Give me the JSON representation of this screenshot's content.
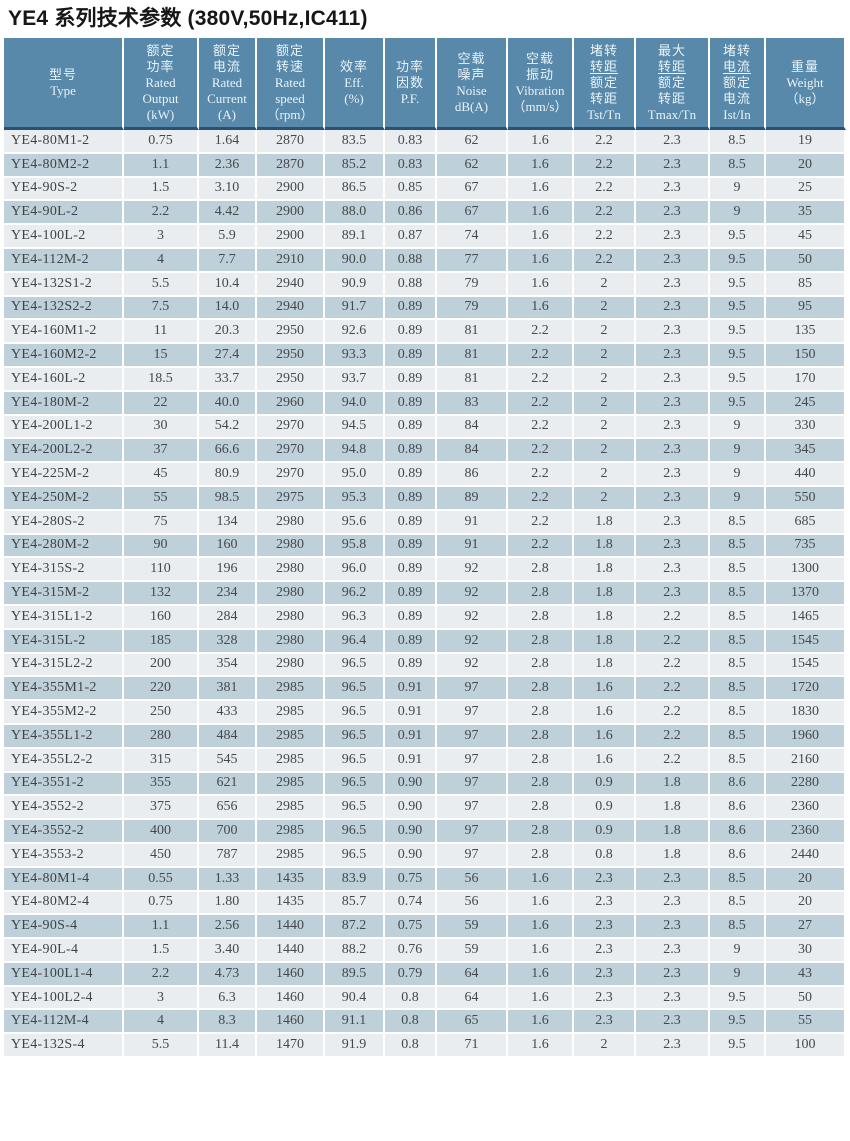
{
  "title": "YE4 系列技术参数 (380V,50Hz,IC411)",
  "colors": {
    "header_bg": "#5889ab",
    "header_text": "#e9f3f7",
    "header_bottom_edge": "#2c5170",
    "row_light": "#e9edef",
    "row_dark": "#bed0d9",
    "cell_text": "#46494b",
    "grid_line": "#ffffff"
  },
  "table": {
    "columns": [
      {
        "id": "type",
        "zh": [
          "型号"
        ],
        "en": [
          "Type"
        ]
      },
      {
        "id": "rated-output",
        "zh": [
          "额定",
          "功率"
        ],
        "en": [
          "Rated",
          "Output",
          "(kW)"
        ]
      },
      {
        "id": "rated-current",
        "zh": [
          "额定",
          "电流"
        ],
        "en": [
          "Rated",
          "Current",
          "(A)"
        ]
      },
      {
        "id": "rated-speed",
        "zh": [
          "额定",
          "转速"
        ],
        "en": [
          "Rated",
          "speed",
          "（rpm）"
        ]
      },
      {
        "id": "efficiency",
        "zh": [
          "效率"
        ],
        "en": [
          "Eff.",
          "(%)"
        ]
      },
      {
        "id": "power-factor",
        "zh": [
          "功率",
          "因数"
        ],
        "en": [
          "P.F."
        ]
      },
      {
        "id": "noise",
        "zh": [
          "空载",
          "噪声"
        ],
        "en": [
          "Noise",
          "dB(A)"
        ]
      },
      {
        "id": "vibration",
        "zh": [
          "空载",
          "振动"
        ],
        "en": [
          "Vibration",
          "（mm/s）"
        ]
      },
      {
        "id": "tst-tn",
        "zh": [
          "堵转",
          "转距",
          "额定",
          "转距"
        ],
        "underline_zh": 1,
        "en": [
          "Tst/Tn"
        ]
      },
      {
        "id": "tmax-tn",
        "zh": [
          "最大",
          "转距",
          "额定",
          "转距"
        ],
        "underline_zh": 1,
        "en": [
          "Tmax/Tn"
        ]
      },
      {
        "id": "ist-in",
        "zh": [
          "堵转",
          "电流",
          "额定",
          "电流"
        ],
        "underline_zh": 1,
        "en": [
          "Ist/In"
        ]
      },
      {
        "id": "weight",
        "zh": [
          "重量"
        ],
        "en": [
          "Weight",
          "（kg）"
        ]
      }
    ],
    "rows": [
      [
        "YE4-80M1-2",
        "0.75",
        "1.64",
        "2870",
        "83.5",
        "0.83",
        "62",
        "1.6",
        "2.2",
        "2.3",
        "8.5",
        "19"
      ],
      [
        "YE4-80M2-2",
        "1.1",
        "2.36",
        "2870",
        "85.2",
        "0.83",
        "62",
        "1.6",
        "2.2",
        "2.3",
        "8.5",
        "20"
      ],
      [
        "YE4-90S-2",
        "1.5",
        "3.10",
        "2900",
        "86.5",
        "0.85",
        "67",
        "1.6",
        "2.2",
        "2.3",
        "9",
        "25"
      ],
      [
        "YE4-90L-2",
        "2.2",
        "4.42",
        "2900",
        "88.0",
        "0.86",
        "67",
        "1.6",
        "2.2",
        "2.3",
        "9",
        "35"
      ],
      [
        "YE4-100L-2",
        "3",
        "5.9",
        "2900",
        "89.1",
        "0.87",
        "74",
        "1.6",
        "2.2",
        "2.3",
        "9.5",
        "45"
      ],
      [
        "YE4-112M-2",
        "4",
        "7.7",
        "2910",
        "90.0",
        "0.88",
        "77",
        "1.6",
        "2.2",
        "2.3",
        "9.5",
        "50"
      ],
      [
        "YE4-132S1-2",
        "5.5",
        "10.4",
        "2940",
        "90.9",
        "0.88",
        "79",
        "1.6",
        "2",
        "2.3",
        "9.5",
        "85"
      ],
      [
        "YE4-132S2-2",
        "7.5",
        "14.0",
        "2940",
        "91.7",
        "0.89",
        "79",
        "1.6",
        "2",
        "2.3",
        "9.5",
        "95"
      ],
      [
        "YE4-160M1-2",
        "11",
        "20.3",
        "2950",
        "92.6",
        "0.89",
        "81",
        "2.2",
        "2",
        "2.3",
        "9.5",
        "135"
      ],
      [
        "YE4-160M2-2",
        "15",
        "27.4",
        "2950",
        "93.3",
        "0.89",
        "81",
        "2.2",
        "2",
        "2.3",
        "9.5",
        "150"
      ],
      [
        "YE4-160L-2",
        "18.5",
        "33.7",
        "2950",
        "93.7",
        "0.89",
        "81",
        "2.2",
        "2",
        "2.3",
        "9.5",
        "170"
      ],
      [
        "YE4-180M-2",
        "22",
        "40.0",
        "2960",
        "94.0",
        "0.89",
        "83",
        "2.2",
        "2",
        "2.3",
        "9.5",
        "245"
      ],
      [
        "YE4-200L1-2",
        "30",
        "54.2",
        "2970",
        "94.5",
        "0.89",
        "84",
        "2.2",
        "2",
        "2.3",
        "9",
        "330"
      ],
      [
        "YE4-200L2-2",
        "37",
        "66.6",
        "2970",
        "94.8",
        "0.89",
        "84",
        "2.2",
        "2",
        "2.3",
        "9",
        "345"
      ],
      [
        "YE4-225M-2",
        "45",
        "80.9",
        "2970",
        "95.0",
        "0.89",
        "86",
        "2.2",
        "2",
        "2.3",
        "9",
        "440"
      ],
      [
        "YE4-250M-2",
        "55",
        "98.5",
        "2975",
        "95.3",
        "0.89",
        "89",
        "2.2",
        "2",
        "2.3",
        "9",
        "550"
      ],
      [
        "YE4-280S-2",
        "75",
        "134",
        "2980",
        "95.6",
        "0.89",
        "91",
        "2.2",
        "1.8",
        "2.3",
        "8.5",
        "685"
      ],
      [
        "YE4-280M-2",
        "90",
        "160",
        "2980",
        "95.8",
        "0.89",
        "91",
        "2.2",
        "1.8",
        "2.3",
        "8.5",
        "735"
      ],
      [
        "YE4-315S-2",
        "110",
        "196",
        "2980",
        "96.0",
        "0.89",
        "92",
        "2.8",
        "1.8",
        "2.3",
        "8.5",
        "1300"
      ],
      [
        "YE4-315M-2",
        "132",
        "234",
        "2980",
        "96.2",
        "0.89",
        "92",
        "2.8",
        "1.8",
        "2.3",
        "8.5",
        "1370"
      ],
      [
        "YE4-315L1-2",
        "160",
        "284",
        "2980",
        "96.3",
        "0.89",
        "92",
        "2.8",
        "1.8",
        "2.2",
        "8.5",
        "1465"
      ],
      [
        "YE4-315L-2",
        "185",
        "328",
        "2980",
        "96.4",
        "0.89",
        "92",
        "2.8",
        "1.8",
        "2.2",
        "8.5",
        "1545"
      ],
      [
        "YE4-315L2-2",
        "200",
        "354",
        "2980",
        "96.5",
        "0.89",
        "92",
        "2.8",
        "1.8",
        "2.2",
        "8.5",
        "1545"
      ],
      [
        "YE4-355M1-2",
        "220",
        "381",
        "2985",
        "96.5",
        "0.91",
        "97",
        "2.8",
        "1.6",
        "2.2",
        "8.5",
        "1720"
      ],
      [
        "YE4-355M2-2",
        "250",
        "433",
        "2985",
        "96.5",
        "0.91",
        "97",
        "2.8",
        "1.6",
        "2.2",
        "8.5",
        "1830"
      ],
      [
        "YE4-355L1-2",
        "280",
        "484",
        "2985",
        "96.5",
        "0.91",
        "97",
        "2.8",
        "1.6",
        "2.2",
        "8.5",
        "1960"
      ],
      [
        "YE4-355L2-2",
        "315",
        "545",
        "2985",
        "96.5",
        "0.91",
        "97",
        "2.8",
        "1.6",
        "2.2",
        "8.5",
        "2160"
      ],
      [
        "YE4-3551-2",
        "355",
        "621",
        "2985",
        "96.5",
        "0.90",
        "97",
        "2.8",
        "0.9",
        "1.8",
        "8.6",
        "2280"
      ],
      [
        "YE4-3552-2",
        "375",
        "656",
        "2985",
        "96.5",
        "0.90",
        "97",
        "2.8",
        "0.9",
        "1.8",
        "8.6",
        "2360"
      ],
      [
        "YE4-3552-2",
        "400",
        "700",
        "2985",
        "96.5",
        "0.90",
        "97",
        "2.8",
        "0.9",
        "1.8",
        "8.6",
        "2360"
      ],
      [
        "YE4-3553-2",
        "450",
        "787",
        "2985",
        "96.5",
        "0.90",
        "97",
        "2.8",
        "0.8",
        "1.8",
        "8.6",
        "2440"
      ],
      [
        "YE4-80M1-4",
        "0.55",
        "1.33",
        "1435",
        "83.9",
        "0.75",
        "56",
        "1.6",
        "2.3",
        "2.3",
        "8.5",
        "20"
      ],
      [
        "YE4-80M2-4",
        "0.75",
        "1.80",
        "1435",
        "85.7",
        "0.74",
        "56",
        "1.6",
        "2.3",
        "2.3",
        "8.5",
        "20"
      ],
      [
        "YE4-90S-4",
        "1.1",
        "2.56",
        "1440",
        "87.2",
        "0.75",
        "59",
        "1.6",
        "2.3",
        "2.3",
        "8.5",
        "27"
      ],
      [
        "YE4-90L-4",
        "1.5",
        "3.40",
        "1440",
        "88.2",
        "0.76",
        "59",
        "1.6",
        "2.3",
        "2.3",
        "9",
        "30"
      ],
      [
        "YE4-100L1-4",
        "2.2",
        "4.73",
        "1460",
        "89.5",
        "0.79",
        "64",
        "1.6",
        "2.3",
        "2.3",
        "9",
        "43"
      ],
      [
        "YE4-100L2-4",
        "3",
        "6.3",
        "1460",
        "90.4",
        "0.8",
        "64",
        "1.6",
        "2.3",
        "2.3",
        "9.5",
        "50"
      ],
      [
        "YE4-112M-4",
        "4",
        "8.3",
        "1460",
        "91.1",
        "0.8",
        "65",
        "1.6",
        "2.3",
        "2.3",
        "9.5",
        "55"
      ],
      [
        "YE4-132S-4",
        "5.5",
        "11.4",
        "1470",
        "91.9",
        "0.8",
        "71",
        "1.6",
        "2",
        "2.3",
        "9.5",
        "100"
      ]
    ]
  }
}
